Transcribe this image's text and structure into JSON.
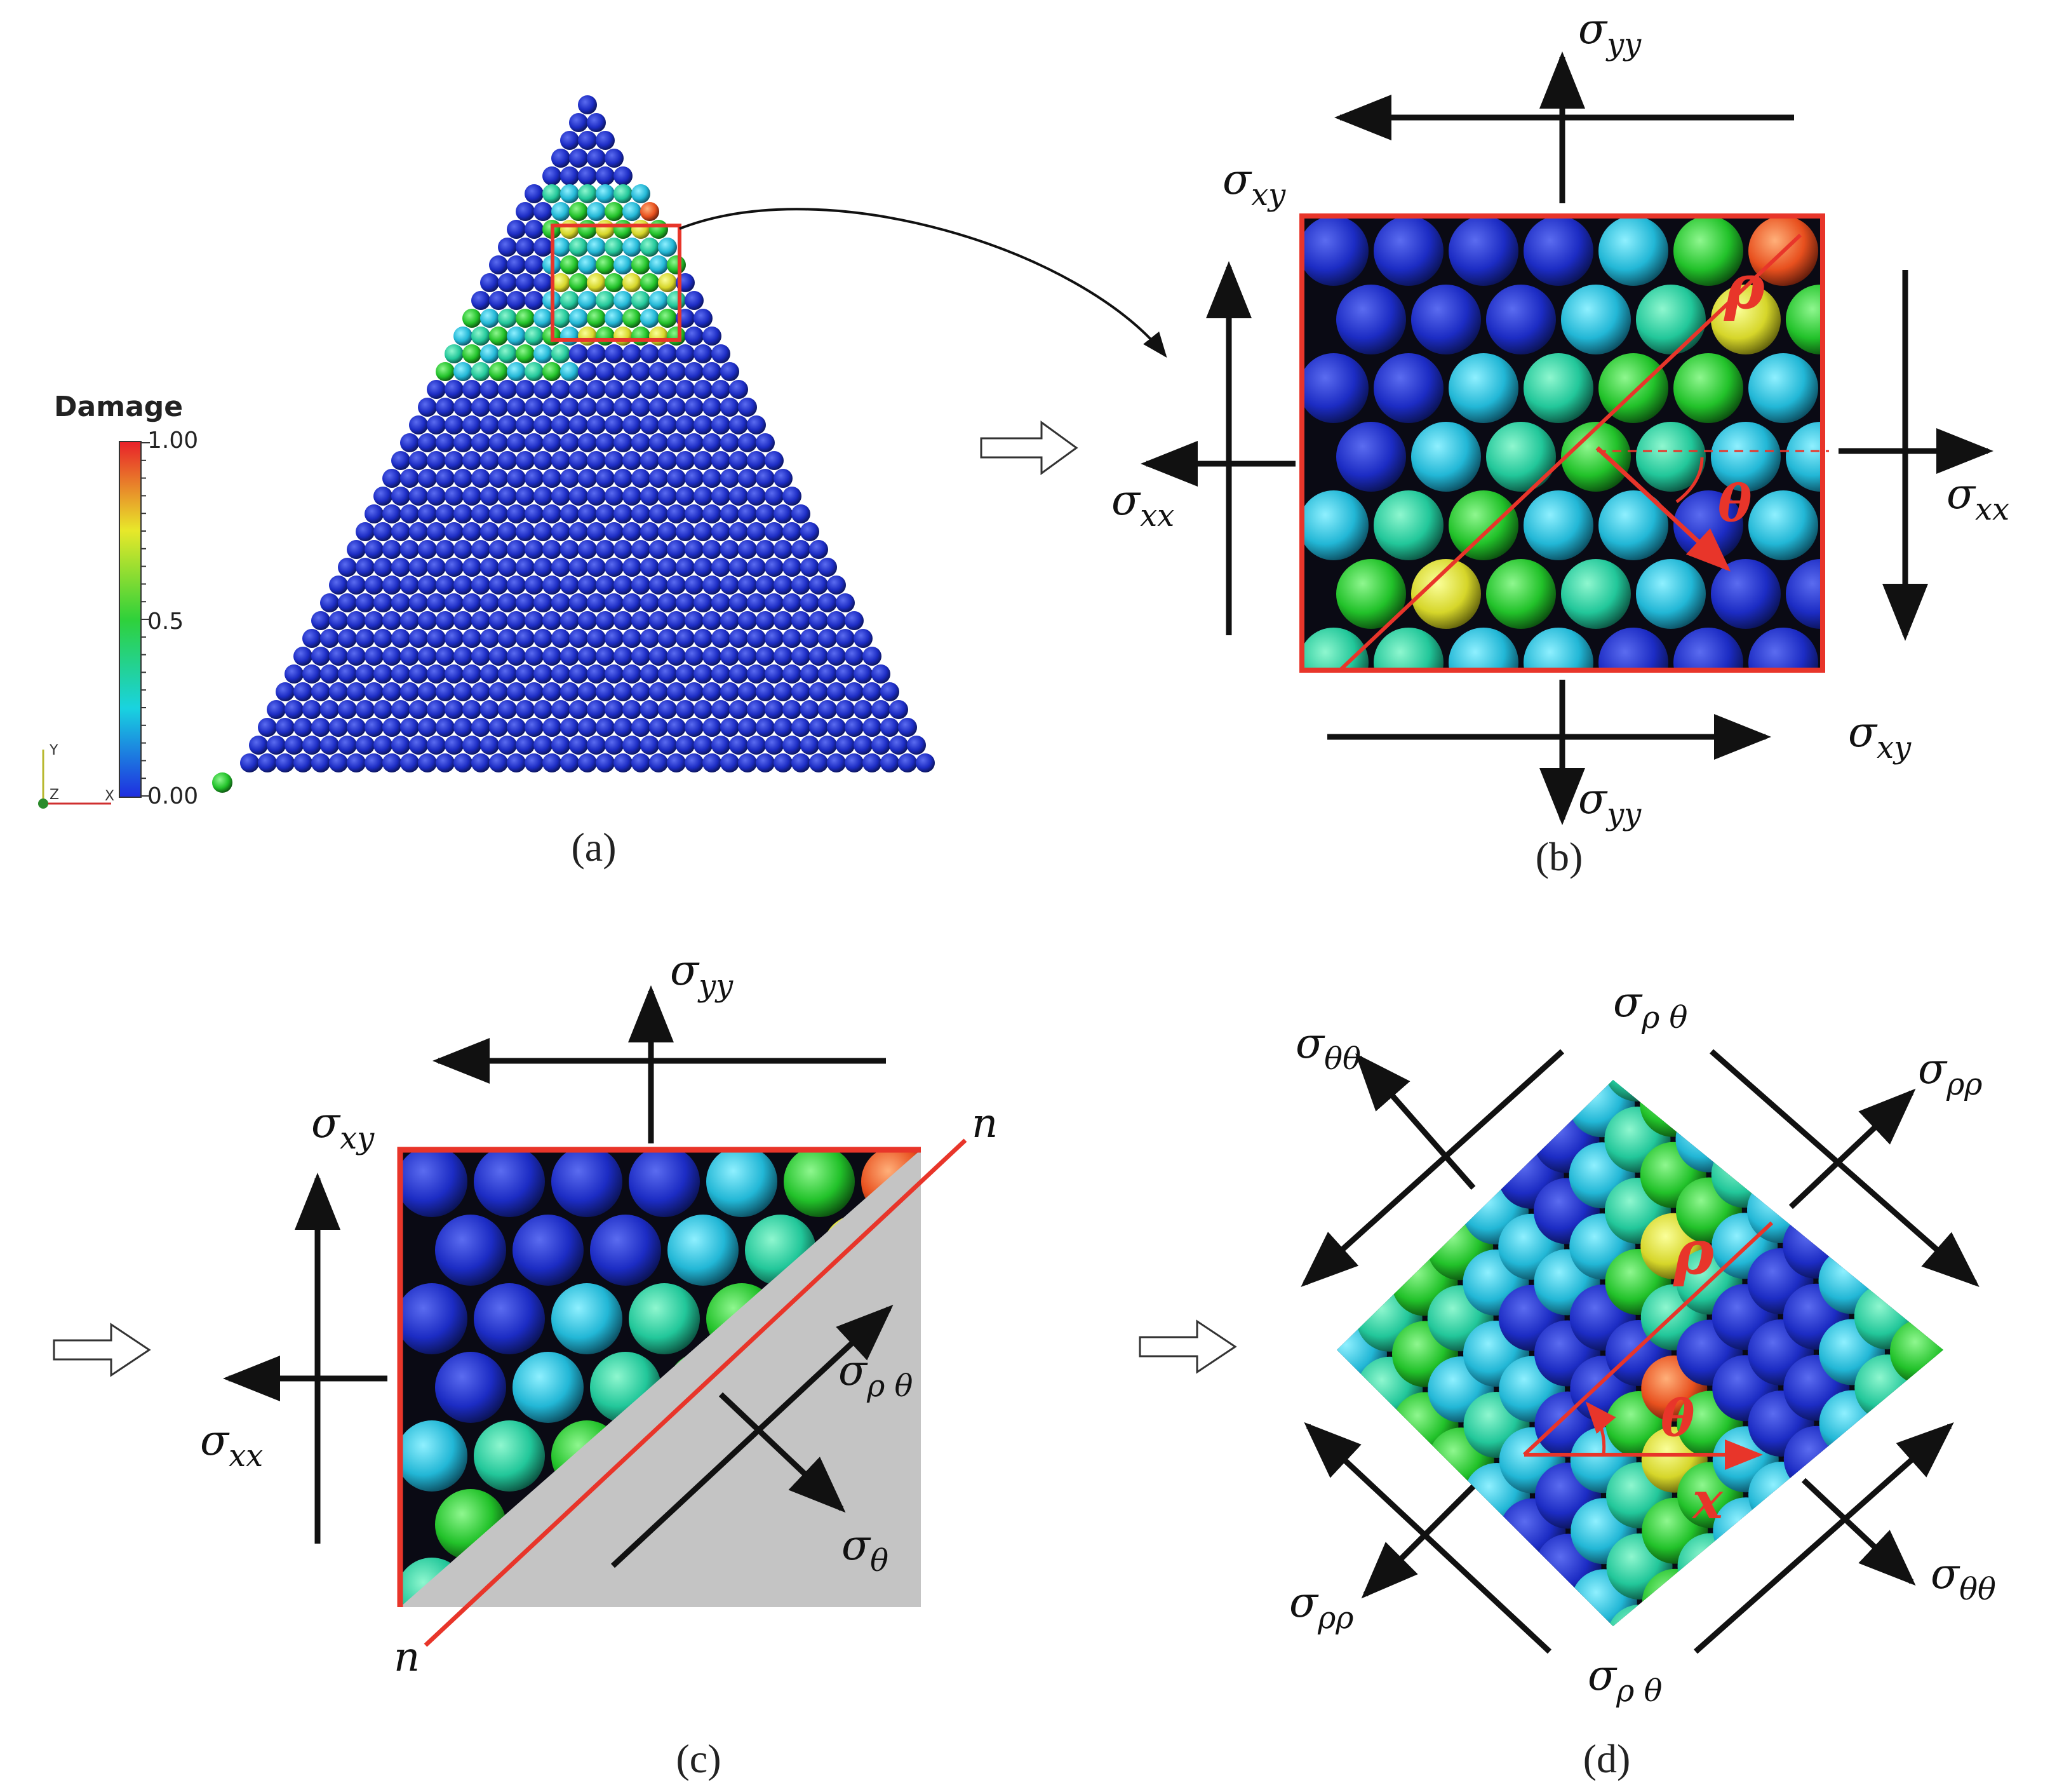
{
  "figure": {
    "captions": {
      "a": "(a)",
      "b": "(b)",
      "c": "(c)",
      "d": "(d)"
    },
    "colorbar": {
      "title": "Damage",
      "ticks": [
        "1.00",
        "0.5",
        "0.00"
      ]
    },
    "triad": {
      "y": "Y",
      "x": "X",
      "z": "Z"
    },
    "symbols": {
      "sigma": "σ",
      "xx": "xx",
      "yy": "yy",
      "xy": "xy",
      "rho_theta": "ρ θ",
      "theta_theta": "θθ",
      "rho_rho": "ρρ",
      "theta": "θ",
      "rho": "ρ",
      "theta_angle": "θ",
      "x_axis": "x",
      "n": "n"
    },
    "colors": {
      "arrow": "#111111",
      "frame_red": "#e8352a",
      "shade_gray": "#c4c4c4",
      "damage_low": "#1a2fc8",
      "damage_high": "#e8352a"
    }
  }
}
